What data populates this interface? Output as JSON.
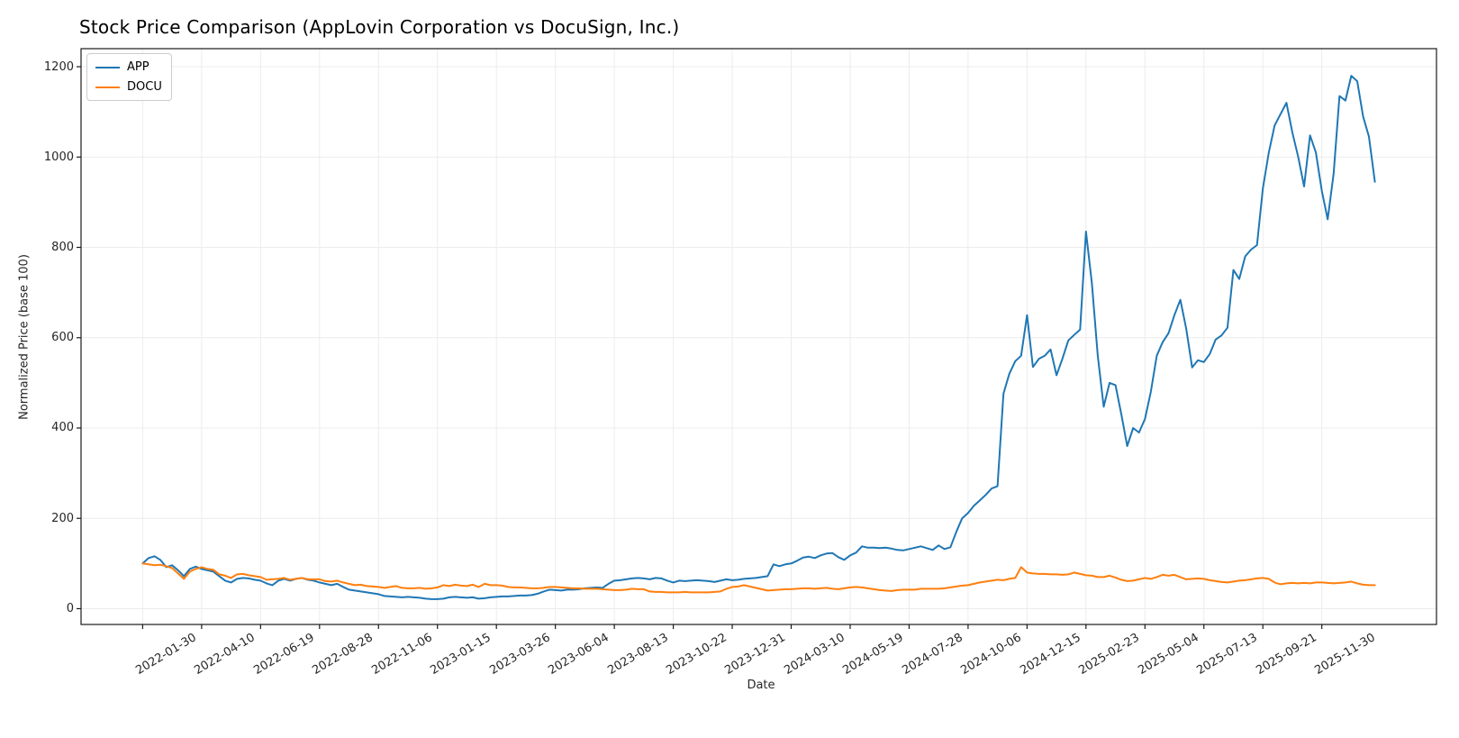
{
  "chart_data": {
    "type": "line",
    "title": "Stock Price Comparison (AppLovin Corporation vs DocuSign, Inc.)",
    "xlabel": "Date",
    "ylabel": "Normalized Price (base 100)",
    "grid": true,
    "legend_position": "upper left",
    "background_color": "#ffffff",
    "grid_color": "#ececec",
    "spine_color": "#1a1a1a",
    "x_frequency": "weekly",
    "x_tick_indices": [
      0,
      10,
      20,
      30,
      40,
      50,
      60,
      70,
      80,
      90,
      100,
      110,
      120,
      130,
      140,
      150,
      160,
      170,
      180,
      190,
      200
    ],
    "x_tick_labels": [
      "2022-01-30",
      "2022-04-10",
      "2022-06-19",
      "2022-08-28",
      "2022-11-06",
      "2023-01-15",
      "2023-03-26",
      "2023-06-04",
      "2023-08-13",
      "2023-10-22",
      "2023-12-31",
      "2024-03-10",
      "2024-05-19",
      "2024-07-28",
      "2024-10-06",
      "2024-12-15",
      "2025-02-23",
      "2025-05-04",
      "2025-07-13",
      "2025-09-21",
      "2025-11-30"
    ],
    "y_ticks": [
      0,
      200,
      400,
      600,
      800,
      1000,
      1200
    ],
    "y_tick_labels": [
      "0",
      "200",
      "400",
      "600",
      "800",
      "1000",
      "1200"
    ],
    "ylim": [
      -35,
      1240
    ],
    "x_margin_weeks": 10.45,
    "series": [
      {
        "name": "APP",
        "color": "#1f77b4",
        "values": [
          100,
          112,
          116,
          108,
          92,
          96,
          85,
          72,
          88,
          93,
          88,
          85,
          82,
          72,
          62,
          58,
          66,
          68,
          67,
          64,
          62,
          56,
          52,
          62,
          66,
          62,
          66,
          68,
          64,
          62,
          58,
          55,
          52,
          55,
          48,
          42,
          40,
          38,
          36,
          34,
          32,
          28,
          27,
          26,
          25,
          26,
          25,
          24,
          22,
          21,
          21,
          22,
          25,
          26,
          25,
          24,
          25,
          22,
          23,
          25,
          26,
          27,
          27,
          28,
          29,
          29,
          30,
          33,
          38,
          42,
          41,
          40,
          42,
          42,
          43,
          45,
          46,
          47,
          46,
          55,
          62,
          63,
          65,
          67,
          68,
          67,
          65,
          68,
          67,
          62,
          58,
          62,
          61,
          62,
          63,
          62,
          61,
          59,
          62,
          65,
          63,
          64,
          66,
          67,
          68,
          70,
          72,
          98,
          94,
          98,
          100,
          106,
          113,
          115,
          112,
          118,
          122,
          123,
          114,
          108,
          118,
          124,
          138,
          135,
          135,
          134,
          135,
          133,
          130,
          129,
          132,
          135,
          138,
          134,
          130,
          140,
          132,
          136,
          170,
          200,
          212,
          228,
          240,
          252,
          266,
          271,
          476,
          520,
          548,
          560,
          650,
          535,
          553,
          560,
          574,
          517,
          553,
          594,
          606,
          618,
          835,
          720,
          560,
          447,
          500,
          495,
          430,
          360,
          400,
          390,
          420,
          480,
          560,
          590,
          610,
          650,
          684,
          620,
          534,
          550,
          546,
          564,
          596,
          605,
          622,
          750,
          730,
          780,
          795,
          805,
          930,
          1010,
          1070,
          1095,
          1120,
          1055,
          1000,
          935,
          1048,
          1010,
          925,
          862,
          963,
          1135,
          1125,
          1180,
          1168,
          1090,
          1045,
          945
        ]
      },
      {
        "name": "DOCU",
        "color": "#ff7f0e",
        "values": [
          100,
          98,
          96,
          97,
          94,
          90,
          78,
          66,
          82,
          88,
          92,
          88,
          86,
          76,
          73,
          68,
          76,
          77,
          74,
          72,
          70,
          64,
          65,
          66,
          68,
          64,
          66,
          68,
          65,
          65,
          65,
          61,
          60,
          62,
          58,
          55,
          52,
          53,
          50,
          49,
          48,
          46,
          48,
          50,
          46,
          45,
          45,
          46,
          44,
          45,
          47,
          52,
          50,
          53,
          51,
          50,
          53,
          48,
          55,
          52,
          52,
          51,
          48,
          47,
          47,
          46,
          45,
          45,
          46,
          48,
          48,
          47,
          46,
          45,
          45,
          44,
          44,
          44,
          43,
          42,
          41,
          41,
          42,
          44,
          43,
          43,
          38,
          37,
          37,
          36,
          36,
          36,
          37,
          36,
          36,
          36,
          36,
          37,
          38,
          44,
          48,
          49,
          52,
          49,
          46,
          43,
          40,
          41,
          42,
          43,
          43,
          44,
          45,
          45,
          44,
          45,
          46,
          44,
          43,
          45,
          47,
          48,
          47,
          45,
          43,
          41,
          40,
          39,
          41,
          42,
          42,
          42,
          44,
          44,
          44,
          44,
          45,
          47,
          49,
          51,
          52,
          55,
          58,
          60,
          62,
          64,
          63,
          66,
          68,
          92,
          80,
          78,
          77,
          77,
          76,
          76,
          75,
          76,
          80,
          77,
          74,
          73,
          70,
          70,
          73,
          69,
          64,
          61,
          62,
          65,
          68,
          66,
          70,
          75,
          73,
          75,
          70,
          65,
          66,
          67,
          66,
          63,
          61,
          59,
          58,
          60,
          62,
          63,
          65,
          67,
          68,
          66,
          58,
          54,
          56,
          57,
          56,
          57,
          56,
          58,
          58,
          57,
          56,
          57,
          58,
          60,
          56,
          53,
          52,
          52
        ]
      }
    ]
  }
}
